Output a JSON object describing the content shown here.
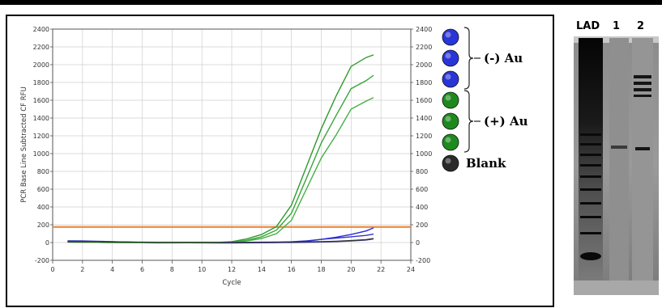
{
  "chart_data": {
    "type": "line",
    "xlabel": "Cycle",
    "ylabel": "PCR Base Line Subtracted CF RFU",
    "xlim": [
      0,
      24
    ],
    "ylim": [
      -200,
      2400
    ],
    "xticks": [
      "0",
      "2",
      "4",
      "6",
      "8",
      "10",
      "12",
      "14",
      "16",
      "18",
      "20",
      "22",
      "24"
    ],
    "yticks": [
      "-200",
      "0",
      "200",
      "400",
      "600",
      "800",
      "1000",
      "1200",
      "1400",
      "1600",
      "1800",
      "2000",
      "2200",
      "2400"
    ],
    "grid": true,
    "threshold": 175,
    "series": [
      {
        "group": "minus",
        "color": "#2a2ad8",
        "x": [
          1,
          2,
          3,
          4,
          5,
          6,
          7,
          8,
          9,
          10,
          11,
          12,
          13,
          14,
          15,
          16,
          17,
          18,
          19,
          20,
          21,
          21.5
        ],
        "y": [
          15,
          12,
          10,
          8,
          5,
          2,
          0,
          -2,
          -3,
          -4,
          -5,
          -5,
          -4,
          -3,
          0,
          5,
          15,
          35,
          60,
          90,
          130,
          165
        ]
      },
      {
        "group": "minus",
        "color": "#3333cc",
        "x": [
          1,
          2,
          3,
          4,
          5,
          6,
          7,
          8,
          9,
          10,
          11,
          12,
          13,
          14,
          15,
          16,
          17,
          18,
          19,
          20,
          21,
          21.5
        ],
        "y": [
          10,
          8,
          6,
          5,
          3,
          1,
          0,
          -1,
          -2,
          -2,
          -3,
          -3,
          -2,
          -1,
          2,
          8,
          18,
          35,
          50,
          65,
          80,
          95
        ]
      },
      {
        "group": "minus",
        "color": "#4444bb",
        "x": [
          1,
          2,
          3,
          4,
          5,
          6,
          7,
          8,
          9,
          10,
          11,
          12,
          13,
          14,
          15,
          16,
          17,
          18,
          19,
          20,
          21,
          21.5
        ],
        "y": [
          20,
          18,
          15,
          10,
          5,
          0,
          -2,
          -3,
          -4,
          -4,
          -4,
          -3,
          -3,
          -2,
          -1,
          0,
          2,
          5,
          10,
          18,
          28,
          40
        ]
      },
      {
        "group": "plus",
        "color": "#2e9a2e",
        "x": [
          1,
          2,
          3,
          4,
          5,
          6,
          7,
          8,
          9,
          10,
          11,
          12,
          13,
          14,
          15,
          16,
          17,
          18,
          19,
          20,
          21,
          21.5
        ],
        "y": [
          5,
          3,
          2,
          0,
          -2,
          -3,
          -4,
          -4,
          -3,
          -2,
          0,
          10,
          40,
          90,
          180,
          420,
          850,
          1280,
          1650,
          1980,
          2080,
          2110
        ]
      },
      {
        "group": "plus",
        "color": "#3aa53a",
        "x": [
          1,
          2,
          3,
          4,
          5,
          6,
          7,
          8,
          9,
          10,
          11,
          12,
          13,
          14,
          15,
          16,
          17,
          18,
          19,
          20,
          21,
          21.5
        ],
        "y": [
          5,
          3,
          2,
          0,
          -2,
          -3,
          -4,
          -4,
          -3,
          -2,
          -1,
          5,
          25,
          65,
          140,
          330,
          720,
          1120,
          1430,
          1730,
          1820,
          1880
        ]
      },
      {
        "group": "plus",
        "color": "#45b045",
        "x": [
          1,
          2,
          3,
          4,
          5,
          6,
          7,
          8,
          9,
          10,
          11,
          12,
          13,
          14,
          15,
          16,
          17,
          18,
          19,
          20,
          21,
          21.5
        ],
        "y": [
          5,
          3,
          2,
          0,
          -2,
          -3,
          -4,
          -4,
          -3,
          -2,
          -1,
          3,
          18,
          45,
          100,
          250,
          600,
          950,
          1210,
          1500,
          1590,
          1630
        ]
      },
      {
        "group": "blank",
        "color": "#333333",
        "x": [
          1,
          2,
          3,
          4,
          5,
          6,
          7,
          8,
          9,
          10,
          11,
          12,
          13,
          14,
          15,
          16,
          17,
          18,
          19,
          20,
          21,
          21.5
        ],
        "y": [
          8,
          8,
          7,
          6,
          5,
          4,
          3,
          3,
          3,
          3,
          3,
          3,
          3,
          4,
          5,
          6,
          8,
          10,
          15,
          22,
          32,
          45
        ]
      }
    ]
  },
  "legend": {
    "markers": [
      {
        "color": "#2a35d8"
      },
      {
        "color": "#2a35d8"
      },
      {
        "color": "#2a35d8"
      },
      {
        "color": "#1e8a1e"
      },
      {
        "color": "#1e8a1e"
      },
      {
        "color": "#1e8a1e"
      },
      {
        "color": "#2a2a2a"
      }
    ],
    "minus_label": "(-) Au",
    "plus_label": "(+) Au",
    "blank_label": "Blank"
  },
  "gel": {
    "lanes": [
      {
        "label": "LAD"
      },
      {
        "label": "1"
      },
      {
        "label": "2"
      }
    ]
  }
}
